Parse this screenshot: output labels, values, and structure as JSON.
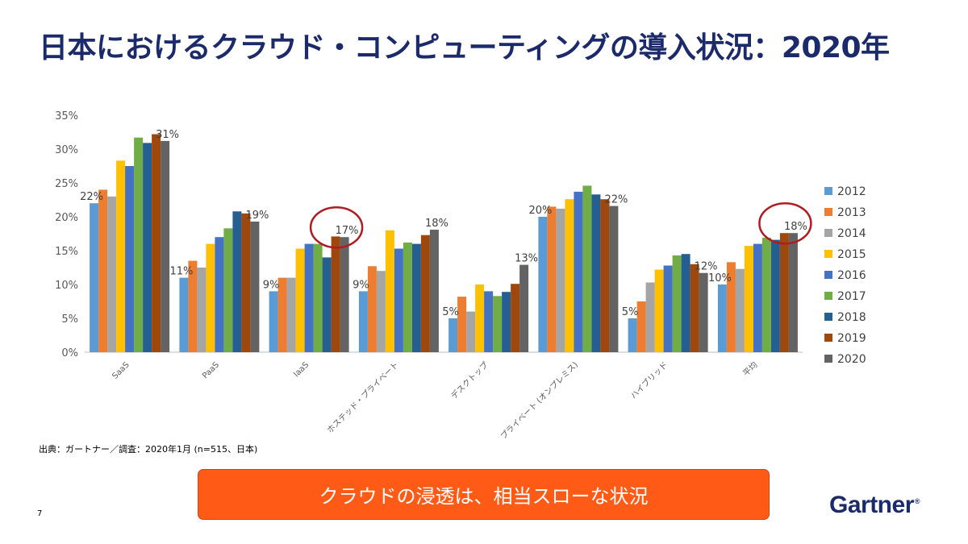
{
  "slide": {
    "title": "日本におけるクラウド・コンピューティングの導入状況：2020年",
    "source": "出典：ガートナー／調査：2020年1月 (n=515、日本)",
    "page_number": "7",
    "banner_text": "クラウドの浸透は、相当スローな状況",
    "logo_text": "Gartner",
    "logo_mark": "®"
  },
  "colors": {
    "title": "#1b2a6b",
    "banner": "#ff5a16",
    "highlight_circle": "#b01c22",
    "series": [
      "#5b9bd5",
      "#ed7d31",
      "#a5a5a5",
      "#ffc000",
      "#4472c4",
      "#70ad47",
      "#255e91",
      "#9e480e",
      "#636363"
    ]
  },
  "chart_data": {
    "type": "bar",
    "categories": [
      "SaaS",
      "PaaS",
      "IaaS",
      "ホステッド・プライベート",
      "デスクトップ",
      "プライベート (オンプレミス)",
      "ハイブリッド",
      "平均"
    ],
    "series": [
      {
        "name": "2012",
        "values": [
          22,
          11,
          9,
          9,
          5,
          20,
          5,
          10
        ]
      },
      {
        "name": "2013",
        "values": [
          24,
          13.5,
          11,
          12.7,
          8.2,
          21.5,
          7.5,
          13.3
        ]
      },
      {
        "name": "2014",
        "values": [
          23,
          12.5,
          11,
          12,
          6,
          21.2,
          10.3,
          12.3
        ]
      },
      {
        "name": "2015",
        "values": [
          28.3,
          16,
          15.3,
          18,
          10,
          22.6,
          12.2,
          15.7
        ]
      },
      {
        "name": "2016",
        "values": [
          27.5,
          17,
          16,
          15.3,
          9,
          23.7,
          12.8,
          16
        ]
      },
      {
        "name": "2017",
        "values": [
          31.7,
          18.3,
          16,
          16.2,
          8.3,
          24.6,
          14.3,
          16.9
        ]
      },
      {
        "name": "2018",
        "values": [
          30.9,
          20.8,
          14,
          16,
          8.9,
          23.3,
          14.5,
          16.6
        ]
      },
      {
        "name": "2019",
        "values": [
          32.2,
          20.5,
          17.1,
          17.3,
          10.1,
          22.6,
          13,
          17.6
        ]
      },
      {
        "name": "2020",
        "values": [
          31.2,
          19.3,
          17,
          18.1,
          12.9,
          21.6,
          11.7,
          17.6
        ]
      }
    ],
    "data_labels": [
      {
        "category": 0,
        "series": 0,
        "text": "22%"
      },
      {
        "category": 0,
        "series": 8,
        "text": "31%"
      },
      {
        "category": 1,
        "series": 0,
        "text": "11%"
      },
      {
        "category": 1,
        "series": 8,
        "text": "19%"
      },
      {
        "category": 2,
        "series": 0,
        "text": "9%"
      },
      {
        "category": 2,
        "series": 8,
        "text": "17%"
      },
      {
        "category": 3,
        "series": 0,
        "text": "9%"
      },
      {
        "category": 3,
        "series": 8,
        "text": "18%"
      },
      {
        "category": 4,
        "series": 0,
        "text": "5%"
      },
      {
        "category": 4,
        "series": 8,
        "text": "13%"
      },
      {
        "category": 5,
        "series": 0,
        "text": "20%"
      },
      {
        "category": 5,
        "series": 8,
        "text": "22%"
      },
      {
        "category": 6,
        "series": 0,
        "text": "5%"
      },
      {
        "category": 6,
        "series": 8,
        "text": "12%"
      },
      {
        "category": 7,
        "series": 0,
        "text": "10%"
      },
      {
        "category": 7,
        "series": 8,
        "text": "18%"
      }
    ],
    "highlighted_labels": [
      2,
      7
    ],
    "yticks": [
      "0%",
      "5%",
      "10%",
      "15%",
      "20%",
      "25%",
      "30%",
      "35%"
    ],
    "ylim": [
      0,
      35
    ],
    "grid": false,
    "legend_position": "right"
  }
}
